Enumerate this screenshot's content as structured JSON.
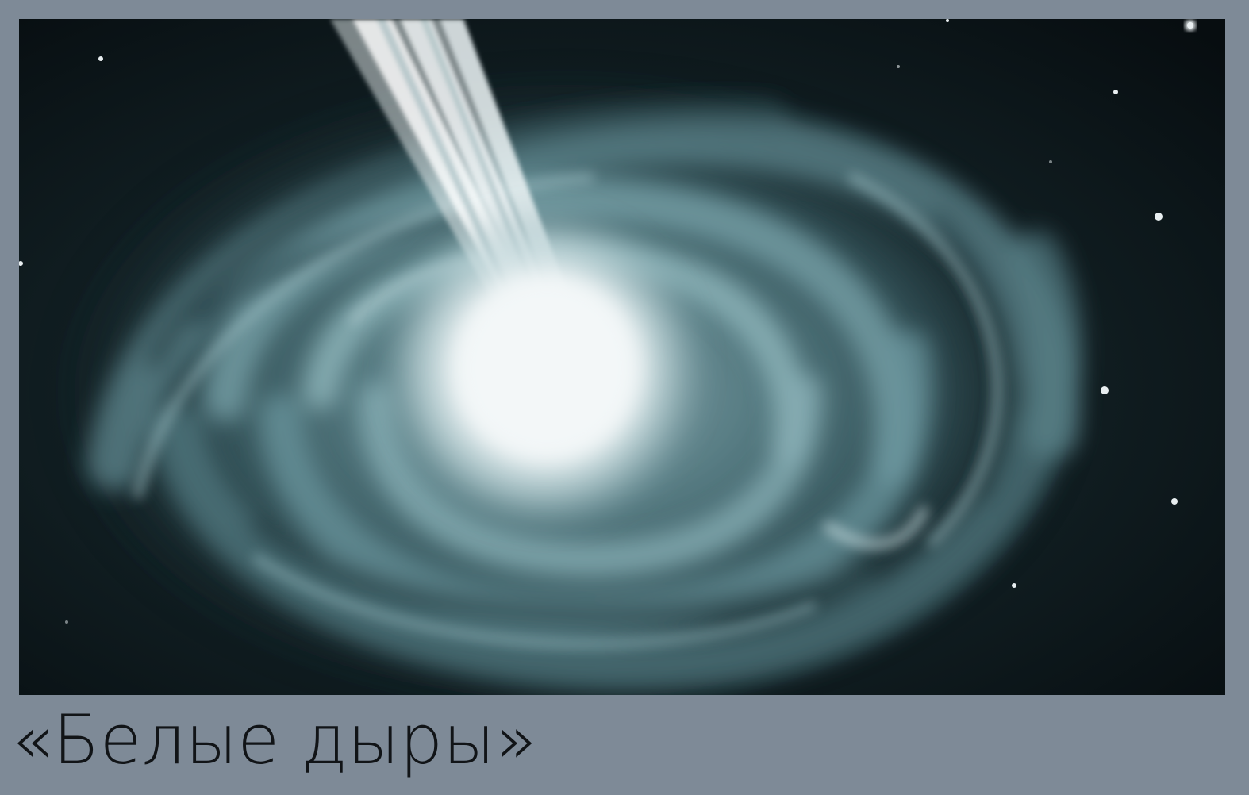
{
  "caption": {
    "text": "«Белые дыры»"
  },
  "image": {
    "subject": "white-hole-illustration",
    "colors": {
      "background": "#7e8a97",
      "space": "#0b1418",
      "swirl": "#6f9ba3",
      "core": "#eef3f4",
      "caption_text": "#111417"
    }
  }
}
